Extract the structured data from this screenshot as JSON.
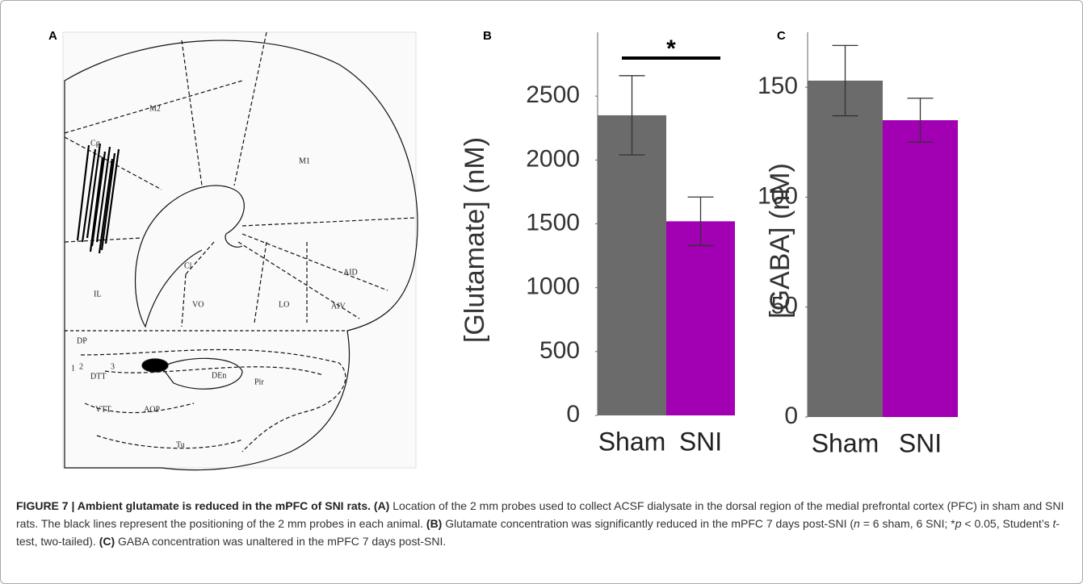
{
  "panel_labels": [
    "A",
    "B",
    "C"
  ],
  "atlas": {
    "labels": [
      "M2",
      "M1",
      "Cg",
      "Cl",
      "AID",
      "IL",
      "VO",
      "LO",
      "AIV",
      "DP",
      "1",
      "2",
      "3",
      "DTT",
      "DEn",
      "Pir",
      "VTT",
      "AOP",
      "Tu"
    ]
  },
  "chart_data": [
    {
      "type": "bar",
      "y_label": "[Glutamate] (nM)",
      "categories": [
        "Sham",
        "SNI"
      ],
      "values": [
        2350,
        1520
      ],
      "errors": [
        310,
        190
      ],
      "colors": [
        "#6b6b6b",
        "#a100b3"
      ],
      "ylim": [
        0,
        3000
      ],
      "yticks": [
        0,
        500,
        1000,
        1500,
        2000,
        2500
      ],
      "annotation": "*"
    },
    {
      "type": "bar",
      "y_label": "[GABA] (nM)",
      "categories": [
        "Sham",
        "SNI"
      ],
      "values": [
        153,
        135
      ],
      "errors": [
        16,
        10
      ],
      "colors": [
        "#6b6b6b",
        "#a100b3"
      ],
      "ylim": [
        0,
        175
      ],
      "yticks": [
        0,
        50,
        100,
        150
      ]
    }
  ],
  "caption": [
    {
      "text": "FIGURE 7 | Ambient glutamate is reduced in the mPFC of SNI rats. (A)",
      "style": "bold"
    },
    {
      "text": " Location of the 2 mm probes used to collect ACSF dialysate in the dorsal region of the medial prefrontal cortex (PFC) in sham and SNI rats. The black lines represent the positioning of the 2 mm probes in each animal. ",
      "style": "normal"
    },
    {
      "text": "(B)",
      "style": "bold"
    },
    {
      "text": " Glutamate concentration was significantly reduced in the mPFC 7 days post-SNI (",
      "style": "normal"
    },
    {
      "text": "n",
      "style": "italic"
    },
    {
      "text": " = 6 sham, 6 SNI; *",
      "style": "normal"
    },
    {
      "text": "p",
      "style": "italic"
    },
    {
      "text": " < 0.05, Student’s ",
      "style": "normal"
    },
    {
      "text": "t",
      "style": "italic"
    },
    {
      "text": "-test, two-tailed). ",
      "style": "normal"
    },
    {
      "text": "(C)",
      "style": "bold"
    },
    {
      "text": " GABA concentration was unaltered in the mPFC 7 days post-SNI.",
      "style": "normal"
    }
  ]
}
